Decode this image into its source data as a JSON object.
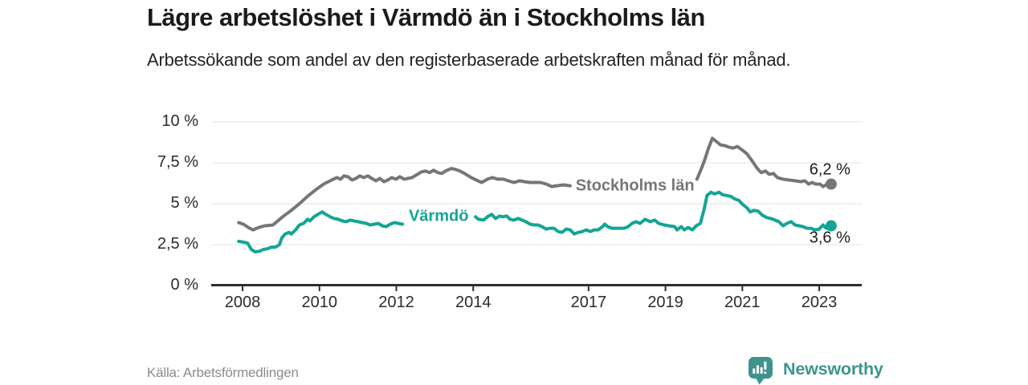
{
  "page": {
    "title": "Lägre arbetslöshet i Värmdö än i Stockholms län",
    "subtitle": "Arbetssökande som andel av den registerbaserade arbetskraften månad för månad.",
    "source": "Källa: Arbetsförmedlingen"
  },
  "branding": {
    "name": "Newsworthy",
    "color": "#3e948d",
    "icon": "bar-chart-speech-bubble-icon"
  },
  "colors": {
    "stockholm": "#767676",
    "varmdo": "#14a596",
    "axis": "#2e2e2e",
    "grid": "#e3e3e3",
    "tick_text": "#2b2b2b",
    "title_text": "#1b1b1b",
    "muted_text": "#8c8c8c"
  },
  "chart_data": {
    "type": "line",
    "title": "Lägre arbetslöshet i Värmdö än i Stockholms län",
    "xlabel": "",
    "ylabel": "",
    "x_unit": "decimal_year",
    "y_unit": "percent",
    "xlim": [
      2007.2,
      2024.1
    ],
    "ylim": [
      0,
      10
    ],
    "grid": true,
    "x_ticks": [
      {
        "label": "2008",
        "value": 2008
      },
      {
        "label": "2010",
        "value": 2010
      },
      {
        "label": "2012",
        "value": 2012
      },
      {
        "label": "2014",
        "value": 2014
      },
      {
        "label": "2017",
        "value": 2017
      },
      {
        "label": "2019",
        "value": 2019
      },
      {
        "label": "2021",
        "value": 2021
      },
      {
        "label": "2023",
        "value": 2023
      }
    ],
    "y_ticks": [
      {
        "label": "0 %",
        "value": 0
      },
      {
        "label": "2,5 %",
        "value": 2.5
      },
      {
        "label": "5 %",
        "value": 5
      },
      {
        "label": "7,5 %",
        "value": 7.5
      },
      {
        "label": "10 %",
        "value": 10
      }
    ],
    "series": [
      {
        "name": "Stockholms län",
        "color": "#767676",
        "end_label": "6,2 %",
        "end_value": 6.2,
        "end_label_position": "above",
        "label_anchor": {
          "year": 2016.58,
          "value": 6.1
        },
        "segments": [
          [
            [
              2007.9,
              3.85
            ],
            [
              2008.02,
              3.75
            ],
            [
              2008.15,
              3.55
            ],
            [
              2008.27,
              3.4
            ],
            [
              2008.42,
              3.55
            ],
            [
              2008.58,
              3.65
            ],
            [
              2008.79,
              3.7
            ],
            [
              2009.07,
              4.25
            ],
            [
              2009.27,
              4.6
            ],
            [
              2009.48,
              5.0
            ],
            [
              2009.69,
              5.45
            ],
            [
              2009.9,
              5.85
            ],
            [
              2010.11,
              6.2
            ],
            [
              2010.32,
              6.45
            ],
            [
              2010.45,
              6.6
            ],
            [
              2010.55,
              6.5
            ],
            [
              2010.64,
              6.7
            ],
            [
              2010.74,
              6.65
            ],
            [
              2010.85,
              6.45
            ],
            [
              2010.95,
              6.55
            ],
            [
              2011.05,
              6.7
            ],
            [
              2011.15,
              6.6
            ],
            [
              2011.26,
              6.7
            ],
            [
              2011.36,
              6.55
            ],
            [
              2011.47,
              6.4
            ],
            [
              2011.57,
              6.55
            ],
            [
              2011.68,
              6.35
            ],
            [
              2011.78,
              6.45
            ],
            [
              2011.88,
              6.6
            ],
            [
              2011.99,
              6.5
            ],
            [
              2012.09,
              6.65
            ],
            [
              2012.2,
              6.5
            ],
            [
              2012.3,
              6.55
            ],
            [
              2012.41,
              6.6
            ],
            [
              2012.55,
              6.8
            ],
            [
              2012.66,
              6.95
            ],
            [
              2012.76,
              7.0
            ],
            [
              2012.87,
              6.9
            ],
            [
              2012.97,
              7.05
            ],
            [
              2013.08,
              6.9
            ],
            [
              2013.18,
              6.85
            ],
            [
              2013.28,
              7.0
            ],
            [
              2013.43,
              7.15
            ],
            [
              2013.54,
              7.1
            ],
            [
              2013.66,
              7.0
            ],
            [
              2013.81,
              6.8
            ],
            [
              2013.95,
              6.6
            ],
            [
              2014.08,
              6.45
            ],
            [
              2014.22,
              6.3
            ],
            [
              2014.37,
              6.5
            ],
            [
              2014.5,
              6.6
            ],
            [
              2014.64,
              6.5
            ],
            [
              2014.79,
              6.5
            ],
            [
              2014.91,
              6.4
            ],
            [
              2015.06,
              6.3
            ],
            [
              2015.21,
              6.4
            ],
            [
              2015.33,
              6.35
            ],
            [
              2015.48,
              6.3
            ],
            [
              2015.62,
              6.3
            ],
            [
              2015.75,
              6.3
            ],
            [
              2015.9,
              6.2
            ],
            [
              2016.04,
              6.05
            ],
            [
              2016.17,
              6.1
            ],
            [
              2016.35,
              6.15
            ],
            [
              2016.52,
              6.1
            ]
          ],
          [
            [
              2019.82,
              6.5
            ],
            [
              2019.91,
              7.0
            ],
            [
              2020.01,
              7.6
            ],
            [
              2020.12,
              8.4
            ],
            [
              2020.22,
              9.0
            ],
            [
              2020.3,
              8.85
            ],
            [
              2020.43,
              8.6
            ],
            [
              2020.55,
              8.55
            ],
            [
              2020.66,
              8.45
            ],
            [
              2020.76,
              8.4
            ],
            [
              2020.87,
              8.5
            ],
            [
              2020.99,
              8.3
            ],
            [
              2021.12,
              8.05
            ],
            [
              2021.26,
              7.6
            ],
            [
              2021.39,
              7.15
            ],
            [
              2021.49,
              6.9
            ],
            [
              2021.6,
              7.0
            ],
            [
              2021.7,
              6.8
            ],
            [
              2021.81,
              6.85
            ],
            [
              2021.91,
              6.6
            ],
            [
              2022.06,
              6.5
            ],
            [
              2022.2,
              6.45
            ],
            [
              2022.37,
              6.4
            ],
            [
              2022.52,
              6.35
            ],
            [
              2022.62,
              6.4
            ],
            [
              2022.73,
              6.2
            ],
            [
              2022.81,
              6.3
            ],
            [
              2022.91,
              6.2
            ],
            [
              2023.02,
              6.2
            ],
            [
              2023.1,
              6.05
            ],
            [
              2023.21,
              6.2
            ],
            [
              2023.31,
              6.2
            ]
          ]
        ]
      },
      {
        "name": "Värmdö",
        "color": "#14a596",
        "end_label": "3,6 %",
        "end_value": 3.6,
        "end_label_position": "below",
        "label_anchor": {
          "year": 2012.24,
          "value": 4.2
        },
        "segments": [
          [
            [
              2007.9,
              2.7
            ],
            [
              2008.02,
              2.65
            ],
            [
              2008.13,
              2.6
            ],
            [
              2008.23,
              2.2
            ],
            [
              2008.33,
              2.06
            ],
            [
              2008.44,
              2.1
            ],
            [
              2008.54,
              2.2
            ],
            [
              2008.65,
              2.25
            ],
            [
              2008.75,
              2.35
            ],
            [
              2008.86,
              2.35
            ],
            [
              2008.96,
              2.5
            ],
            [
              2009.02,
              2.9
            ],
            [
              2009.11,
              3.15
            ],
            [
              2009.21,
              3.25
            ],
            [
              2009.27,
              3.15
            ],
            [
              2009.38,
              3.4
            ],
            [
              2009.48,
              3.7
            ],
            [
              2009.59,
              3.8
            ],
            [
              2009.69,
              4.05
            ],
            [
              2009.75,
              3.95
            ],
            [
              2009.86,
              4.2
            ],
            [
              2009.96,
              4.35
            ],
            [
              2010.07,
              4.5
            ],
            [
              2010.17,
              4.35
            ],
            [
              2010.28,
              4.2
            ],
            [
              2010.38,
              4.1
            ],
            [
              2010.49,
              4.05
            ],
            [
              2010.59,
              3.95
            ],
            [
              2010.7,
              3.9
            ],
            [
              2010.8,
              4.0
            ],
            [
              2010.9,
              3.95
            ],
            [
              2011.01,
              3.9
            ],
            [
              2011.11,
              3.85
            ],
            [
              2011.22,
              3.8
            ],
            [
              2011.32,
              3.7
            ],
            [
              2011.43,
              3.75
            ],
            [
              2011.53,
              3.8
            ],
            [
              2011.63,
              3.65
            ],
            [
              2011.74,
              3.6
            ],
            [
              2011.84,
              3.75
            ],
            [
              2011.95,
              3.85
            ],
            [
              2012.05,
              3.8
            ],
            [
              2012.16,
              3.75
            ]
          ],
          [
            [
              2014.06,
              4.2
            ],
            [
              2014.14,
              4.05
            ],
            [
              2014.27,
              4.0
            ],
            [
              2014.37,
              4.2
            ],
            [
              2014.48,
              4.35
            ],
            [
              2014.58,
              4.1
            ],
            [
              2014.69,
              4.25
            ],
            [
              2014.77,
              4.2
            ],
            [
              2014.87,
              4.25
            ],
            [
              2014.96,
              4.05
            ],
            [
              2015.06,
              4.0
            ],
            [
              2015.17,
              4.1
            ],
            [
              2015.27,
              4.0
            ],
            [
              2015.37,
              3.9
            ],
            [
              2015.48,
              3.75
            ],
            [
              2015.58,
              3.7
            ],
            [
              2015.69,
              3.7
            ],
            [
              2015.79,
              3.6
            ],
            [
              2015.9,
              3.45
            ],
            [
              2016.0,
              3.5
            ],
            [
              2016.1,
              3.5
            ],
            [
              2016.21,
              3.3
            ],
            [
              2016.31,
              3.25
            ],
            [
              2016.42,
              3.45
            ],
            [
              2016.52,
              3.4
            ],
            [
              2016.63,
              3.15
            ],
            [
              2016.73,
              3.25
            ],
            [
              2016.84,
              3.3
            ],
            [
              2016.94,
              3.4
            ],
            [
              2017.05,
              3.3
            ],
            [
              2017.15,
              3.4
            ],
            [
              2017.25,
              3.4
            ],
            [
              2017.36,
              3.6
            ],
            [
              2017.42,
              3.75
            ],
            [
              2017.5,
              3.6
            ],
            [
              2017.61,
              3.5
            ],
            [
              2017.71,
              3.5
            ],
            [
              2017.82,
              3.5
            ],
            [
              2017.92,
              3.5
            ],
            [
              2018.03,
              3.6
            ],
            [
              2018.13,
              3.8
            ],
            [
              2018.23,
              3.9
            ],
            [
              2018.34,
              3.8
            ],
            [
              2018.47,
              4.05
            ],
            [
              2018.61,
              3.9
            ],
            [
              2018.72,
              4.0
            ],
            [
              2018.82,
              3.8
            ],
            [
              2018.97,
              3.7
            ],
            [
              2019.09,
              3.65
            ],
            [
              2019.24,
              3.6
            ],
            [
              2019.3,
              3.4
            ],
            [
              2019.41,
              3.6
            ],
            [
              2019.49,
              3.4
            ],
            [
              2019.59,
              3.55
            ],
            [
              2019.7,
              3.4
            ],
            [
              2019.8,
              3.65
            ],
            [
              2019.91,
              3.8
            ],
            [
              2020.01,
              4.7
            ],
            [
              2020.08,
              5.5
            ],
            [
              2020.18,
              5.7
            ],
            [
              2020.28,
              5.6
            ],
            [
              2020.39,
              5.7
            ],
            [
              2020.49,
              5.55
            ],
            [
              2020.6,
              5.5
            ],
            [
              2020.7,
              5.45
            ],
            [
              2020.8,
              5.3
            ],
            [
              2020.91,
              5.2
            ],
            [
              2021.01,
              4.95
            ],
            [
              2021.12,
              4.75
            ],
            [
              2021.2,
              4.5
            ],
            [
              2021.31,
              4.6
            ],
            [
              2021.41,
              4.55
            ],
            [
              2021.52,
              4.3
            ],
            [
              2021.64,
              4.15
            ],
            [
              2021.74,
              4.1
            ],
            [
              2021.85,
              4.0
            ],
            [
              2021.95,
              3.9
            ],
            [
              2022.06,
              3.65
            ],
            [
              2022.16,
              3.8
            ],
            [
              2022.27,
              3.9
            ],
            [
              2022.37,
              3.7
            ],
            [
              2022.47,
              3.65
            ],
            [
              2022.58,
              3.6
            ],
            [
              2022.68,
              3.5
            ],
            [
              2022.78,
              3.5
            ],
            [
              2022.89,
              3.4
            ],
            [
              2023.0,
              3.45
            ],
            [
              2023.1,
              3.7
            ],
            [
              2023.18,
              3.5
            ],
            [
              2023.31,
              3.65
            ]
          ]
        ]
      }
    ]
  }
}
